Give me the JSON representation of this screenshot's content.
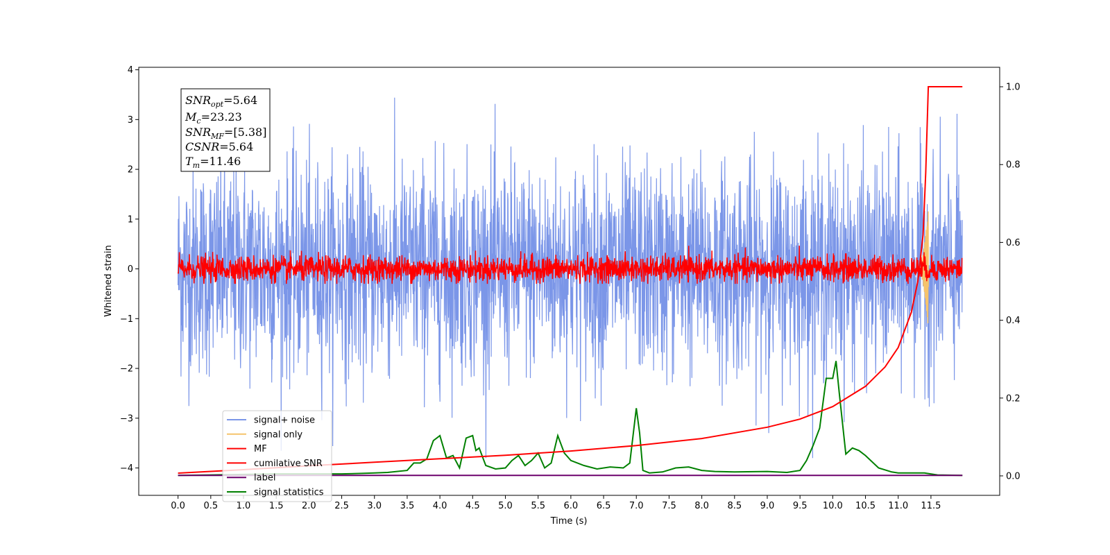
{
  "chart_data": {
    "type": "line",
    "xlabel": "Time (s)",
    "ylabel": "Whitened strain",
    "xlim": [
      -0.6,
      12.55
    ],
    "ylim": [
      -4.55,
      4.05
    ],
    "y2lim": [
      -0.05,
      1.05
    ],
    "x_ticks": [
      "0.0",
      "0.5",
      "1.0",
      "1.5",
      "2.0",
      "2.5",
      "3.0",
      "3.5",
      "4.0",
      "4.5",
      "5.0",
      "5.5",
      "6.0",
      "6.5",
      "7.0",
      "7.5",
      "8.0",
      "8.5",
      "9.0",
      "9.5",
      "10.0",
      "10.5",
      "11.0",
      "11.5"
    ],
    "y_ticks": [
      "4",
      "3",
      "2",
      "1",
      "0",
      "−1",
      "−2",
      "−3",
      "−4"
    ],
    "y2_ticks": [
      "1.0",
      "0.8",
      "0.6",
      "0.4",
      "0.2",
      "0.0"
    ],
    "legend_position": "lower-left",
    "annotation": {
      "snr_opt": {
        "main": "SNR",
        "sub": "opt",
        "value": "=5.64"
      },
      "mc": {
        "main": "M",
        "sub": "c",
        "value": "=23.23"
      },
      "snr_mf": {
        "main": "SNR",
        "sub": "MF",
        "value": "=[5.38]"
      },
      "csnr": {
        "main": "CSNR",
        "value": "=5.64"
      },
      "tm": {
        "main": "T",
        "sub": "m",
        "value": "=11.46"
      }
    },
    "series": [
      {
        "name": "signal+ noise",
        "color": "#7b96e8",
        "axis": "left",
        "time_range": [
          0.0,
          11.98
        ],
        "mean": 0.0,
        "amplitude_range": [
          -3.8,
          3.6
        ]
      },
      {
        "name": "signal only",
        "color": "#f5c36b",
        "axis": "left",
        "time_range": [
          11.3,
          11.46
        ],
        "peak": 1.2
      },
      {
        "name": "MF",
        "color": "#ff0000",
        "axis": "left",
        "time_range": [
          0.0,
          11.98
        ],
        "mean": 0.0,
        "amplitude_range": [
          -0.3,
          0.6
        ]
      },
      {
        "name": "cumilative SNR",
        "color": "#ff0000",
        "axis": "right",
        "x": [
          0.0,
          1.0,
          2.0,
          3.0,
          4.0,
          5.0,
          6.0,
          7.0,
          8.0,
          9.0,
          9.5,
          10.0,
          10.5,
          10.8,
          11.0,
          11.2,
          11.3,
          11.38,
          11.42,
          11.46,
          11.98
        ],
        "y": [
          0.007,
          0.016,
          0.026,
          0.035,
          0.044,
          0.053,
          0.064,
          0.078,
          0.096,
          0.125,
          0.146,
          0.178,
          0.23,
          0.28,
          0.33,
          0.42,
          0.5,
          0.62,
          0.78,
          1.0,
          1.0
        ]
      },
      {
        "name": "label",
        "color": "#6b006b",
        "axis": "left",
        "x": [
          0.0,
          11.98
        ],
        "y": [
          -4.15,
          -4.15
        ]
      },
      {
        "name": "signal statistics",
        "color": "#008000",
        "axis": "left",
        "x": [
          0.0,
          0.5,
          1.0,
          1.5,
          2.0,
          2.5,
          2.8,
          3.0,
          3.2,
          3.5,
          3.6,
          3.7,
          3.8,
          3.9,
          4.0,
          4.1,
          4.2,
          4.3,
          4.4,
          4.5,
          4.55,
          4.6,
          4.7,
          4.85,
          5.0,
          5.1,
          5.2,
          5.3,
          5.4,
          5.5,
          5.6,
          5.7,
          5.8,
          5.9,
          6.0,
          6.2,
          6.4,
          6.6,
          6.8,
          6.9,
          7.0,
          7.05,
          7.1,
          7.2,
          7.4,
          7.6,
          7.8,
          8.0,
          8.2,
          8.5,
          9.0,
          9.3,
          9.5,
          9.6,
          9.7,
          9.8,
          9.9,
          10.0,
          10.05,
          10.1,
          10.2,
          10.3,
          10.4,
          10.5,
          10.7,
          10.9,
          11.0,
          11.2,
          11.4,
          11.6,
          11.98
        ],
        "y": [
          -4.15,
          -4.14,
          -4.13,
          -4.12,
          -4.12,
          -4.12,
          -4.11,
          -4.1,
          -4.09,
          -4.05,
          -3.9,
          -3.9,
          -3.82,
          -3.45,
          -3.35,
          -3.8,
          -3.75,
          -4.0,
          -3.4,
          -3.35,
          -3.65,
          -3.6,
          -3.95,
          -4.02,
          -4.0,
          -3.85,
          -3.75,
          -3.95,
          -3.85,
          -3.7,
          -4.0,
          -3.9,
          -3.35,
          -3.7,
          -3.85,
          -3.95,
          -4.02,
          -3.98,
          -4.0,
          -3.9,
          -2.8,
          -3.3,
          -4.05,
          -4.1,
          -4.08,
          -4.0,
          -3.98,
          -4.05,
          -4.07,
          -4.08,
          -4.07,
          -4.09,
          -4.05,
          -3.85,
          -3.55,
          -3.2,
          -2.2,
          -2.2,
          -1.85,
          -2.5,
          -3.72,
          -3.6,
          -3.65,
          -3.75,
          -4.0,
          -4.08,
          -4.1,
          -4.1,
          -4.1,
          -4.14,
          -4.15
        ]
      }
    ]
  }
}
